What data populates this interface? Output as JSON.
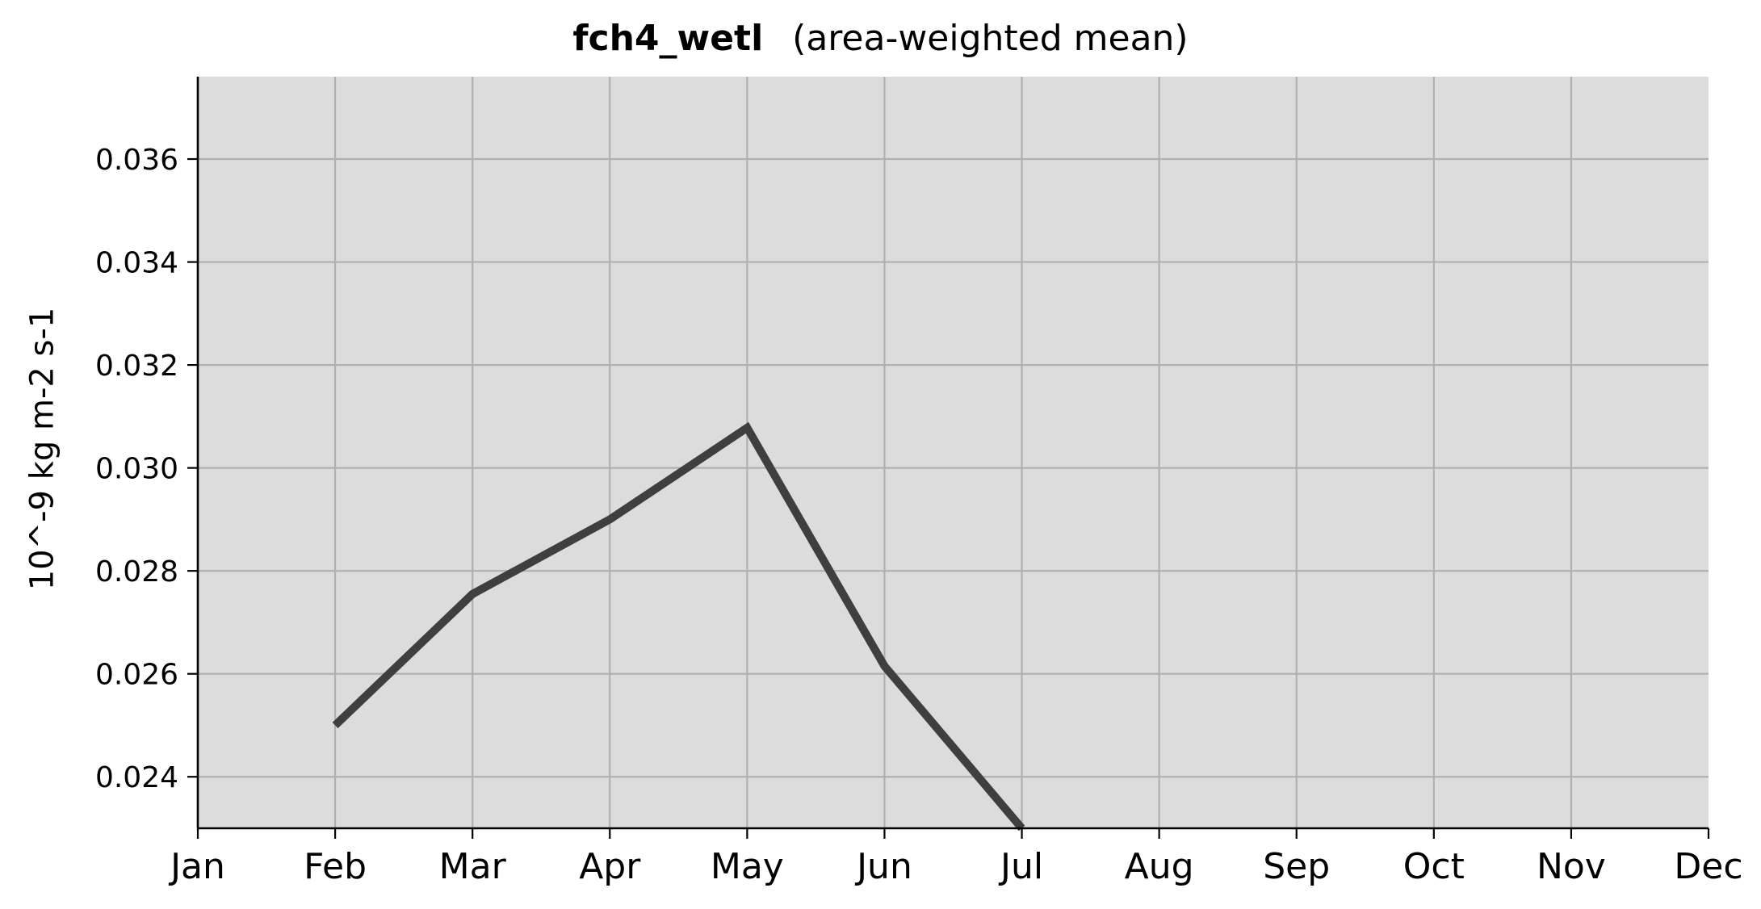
{
  "chart_data": {
    "type": "line",
    "title": "fch4_wetl",
    "subtitle": "(area-weighted mean)",
    "xlabel": "",
    "ylabel": "10^-9 kg m-2 s-1",
    "categories": [
      "Jan",
      "Feb",
      "Mar",
      "Apr",
      "May",
      "Jun",
      "Jul",
      "Aug",
      "Sep",
      "Oct",
      "Nov",
      "Dec"
    ],
    "y_ticks": [
      "0.024",
      "0.026",
      "0.028",
      "0.030",
      "0.032",
      "0.034",
      "0.036"
    ],
    "ylim": [
      0.023,
      0.0376
    ],
    "grid": true,
    "series": [
      {
        "x": [
          "Feb",
          "Mar",
          "Apr",
          "May",
          "Jun",
          "Jul"
        ],
        "values": [
          0.025,
          0.02755,
          0.029,
          0.03078,
          0.02615,
          0.023
        ]
      }
    ],
    "colors": {
      "plot_background": "#dcdcdc",
      "grid": "#b0b0b0",
      "line": "#3f3f3f",
      "axis": "#000000"
    }
  }
}
